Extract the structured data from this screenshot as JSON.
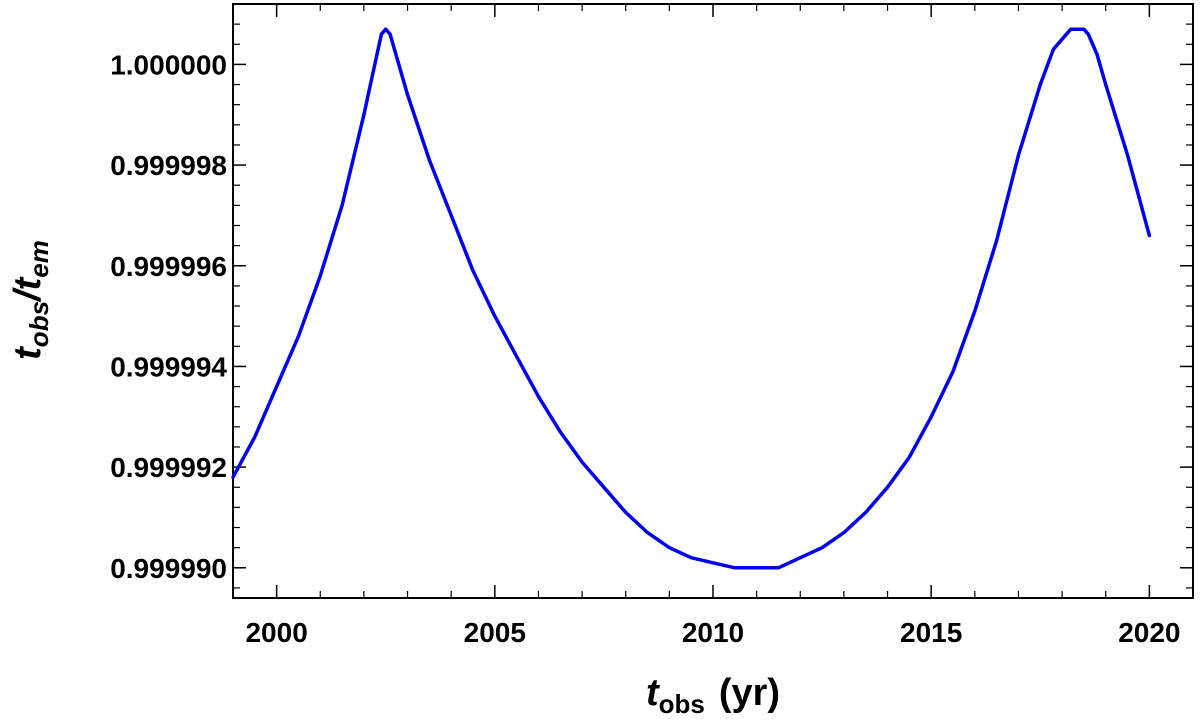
{
  "chart_data": {
    "type": "line",
    "title": "",
    "xlabel": {
      "main": "t",
      "sub": "obs",
      "unit": "(yr)"
    },
    "ylabel": {
      "num": "t",
      "num_sub": "obs",
      "slash": "/",
      "den": "t",
      "den_sub": "em"
    },
    "xlim": [
      1999.0,
      2021.0
    ],
    "ylim": [
      0.9999894,
      1.0000012
    ],
    "x_ticks": [
      {
        "value": 2000,
        "label": "2000"
      },
      {
        "value": 2005,
        "label": "2005"
      },
      {
        "value": 2010,
        "label": "2010"
      },
      {
        "value": 2015,
        "label": "2015"
      },
      {
        "value": 2020,
        "label": "2020"
      }
    ],
    "y_ticks": [
      {
        "value": 0.99999,
        "label": "0.999990"
      },
      {
        "value": 0.999992,
        "label": "0.999992"
      },
      {
        "value": 0.999994,
        "label": "0.999994"
      },
      {
        "value": 0.999996,
        "label": "0.999996"
      },
      {
        "value": 0.999998,
        "label": "0.999998"
      },
      {
        "value": 1.0,
        "label": "1.000000"
      }
    ],
    "x_minor_step": 1,
    "y_minor_step": 4e-07,
    "grid": false,
    "legend": "none",
    "series": [
      {
        "color": "#0000ee",
        "x": [
          1999.0,
          1999.5,
          2000.0,
          2000.5,
          2001.0,
          2001.5,
          2002.0,
          2002.2,
          2002.4,
          2002.5,
          2002.6,
          2002.8,
          2003.0,
          2003.5,
          2004.0,
          2004.5,
          2005.0,
          2005.5,
          2006.0,
          2006.5,
          2007.0,
          2007.5,
          2008.0,
          2008.5,
          2009.0,
          2009.5,
          2010.0,
          2010.5,
          2011.0,
          2011.3,
          2011.5,
          2012.0,
          2012.5,
          2013.0,
          2013.5,
          2014.0,
          2014.5,
          2015.0,
          2015.5,
          2016.0,
          2016.5,
          2017.0,
          2017.5,
          2017.8,
          2018.0,
          2018.2,
          2018.4,
          2018.5,
          2018.6,
          2018.8,
          2019.0,
          2019.5,
          2020.0
        ],
        "y": [
          0.9999918,
          0.9999926,
          0.9999936,
          0.9999946,
          0.9999958,
          0.9999972,
          0.999999,
          0.9999998,
          1.0000006,
          1.0000007,
          1.0000006,
          1.0,
          0.9999994,
          0.9999981,
          0.999997,
          0.9999959,
          0.999995,
          0.9999942,
          0.9999934,
          0.9999927,
          0.9999921,
          0.9999916,
          0.9999911,
          0.9999907,
          0.9999904,
          0.9999902,
          0.9999901,
          0.99999,
          0.99999,
          0.99999,
          0.99999,
          0.9999902,
          0.9999904,
          0.9999907,
          0.9999911,
          0.9999916,
          0.9999922,
          0.999993,
          0.9999939,
          0.9999951,
          0.9999965,
          0.9999982,
          0.9999996,
          1.0000003,
          1.0000005,
          1.0000007,
          1.0000007,
          1.0000007,
          1.0000006,
          1.0000002,
          0.9999996,
          0.9999982,
          0.9999966
        ]
      }
    ]
  }
}
